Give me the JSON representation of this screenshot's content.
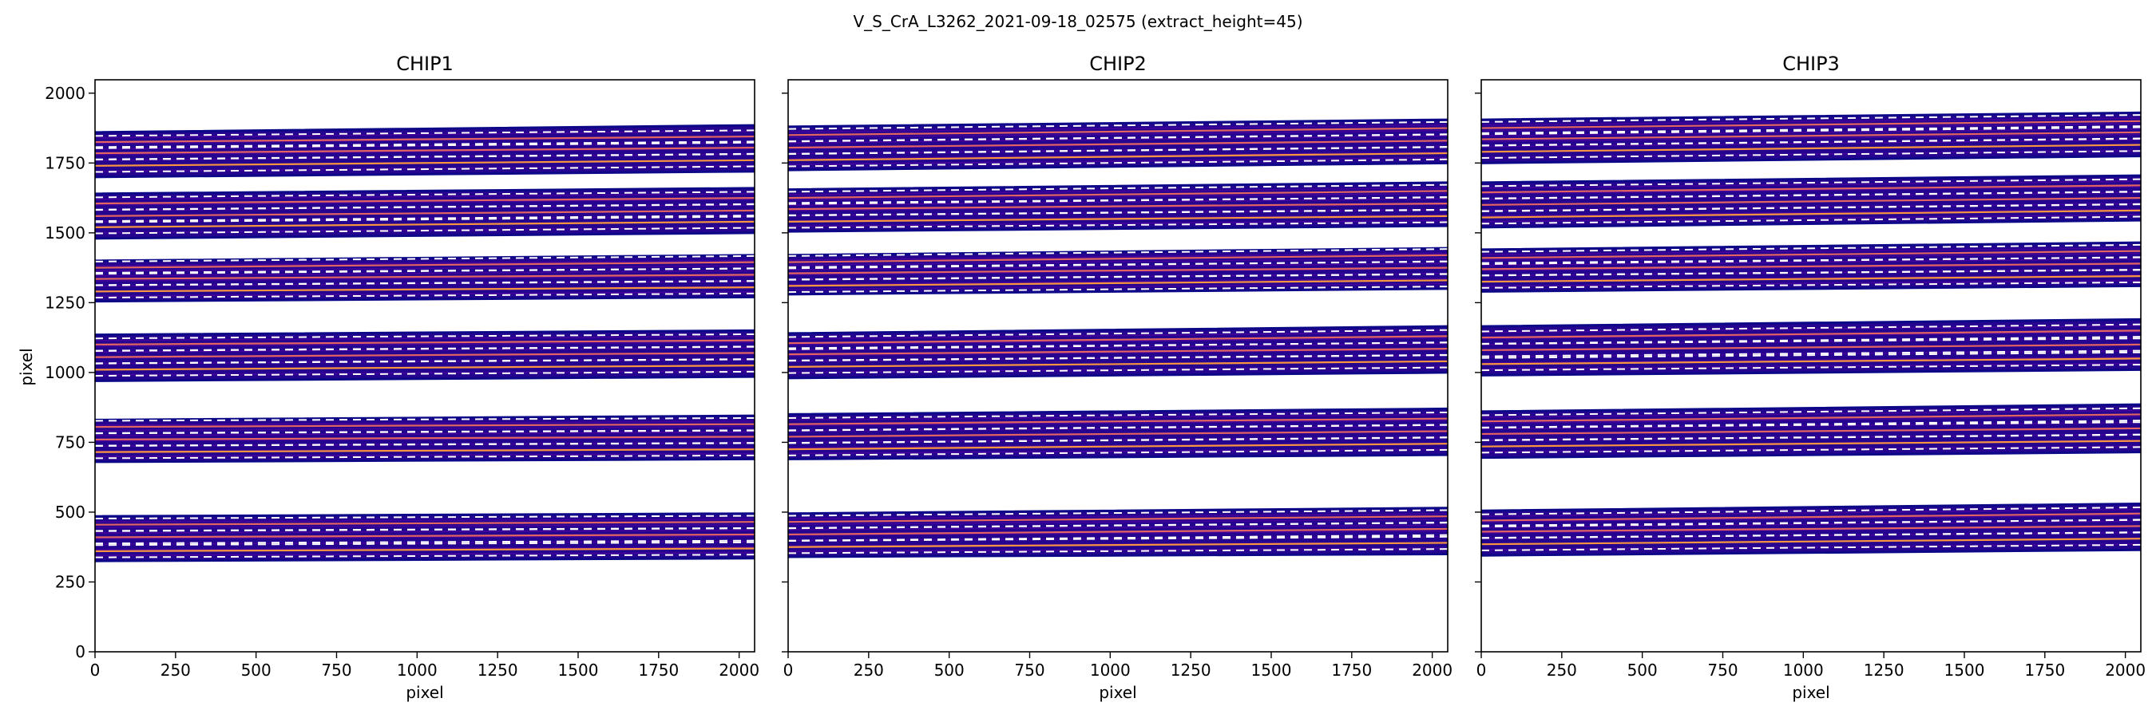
{
  "chart_data": {
    "type": "heatmap",
    "suptitle": "V_S_CrA_L3262_2021-09-18_02575  (extract_height=45)",
    "xlabel": "pixel",
    "ylabel": "pixel",
    "xlim": [
      0,
      2048
    ],
    "ylim": [
      0,
      2048
    ],
    "xticks": [
      0,
      250,
      500,
      750,
      1000,
      1250,
      1500,
      1750,
      2000
    ],
    "yticks": [
      0,
      250,
      500,
      750,
      1000,
      1250,
      1500,
      1750,
      2000
    ],
    "colors": {
      "band_fill": "#25048f",
      "band_edge": "#0d0887",
      "band_stripe": "#5c01a6",
      "trace_line": "#f89540",
      "trace_pink": "#e16462",
      "dashed_line": "#ffffff"
    },
    "panels": [
      {
        "title": "CHIP1",
        "orders": [
          {
            "bottom": [
              325,
              335
            ],
            "top": [
              485,
              495
            ],
            "traces": [
              [
                360,
                370
              ],
              [
                410,
                420
              ],
              [
                455,
                465
              ]
            ]
          },
          {
            "bottom": [
              680,
              690
            ],
            "top": [
              830,
              845
            ],
            "traces": [
              [
                715,
                725
              ],
              [
                760,
                770
              ],
              [
                805,
                815
              ]
            ]
          },
          {
            "bottom": [
              970,
              985
            ],
            "top": [
              1135,
              1150
            ],
            "traces": [
              [
                1010,
                1025
              ],
              [
                1055,
                1070
              ],
              [
                1100,
                1115
              ]
            ]
          },
          {
            "bottom": [
              1255,
              1270
            ],
            "top": [
              1400,
              1420
            ],
            "traces": [
              [
                1290,
                1305
              ],
              [
                1335,
                1350
              ],
              [
                1375,
                1395
              ]
            ]
          },
          {
            "bottom": [
              1480,
              1500
            ],
            "top": [
              1640,
              1660
            ],
            "traces": [
              [
                1520,
                1540
              ],
              [
                1560,
                1580
              ],
              [
                1605,
                1625
              ]
            ]
          },
          {
            "bottom": [
              1700,
              1720
            ],
            "top": [
              1860,
              1885
            ],
            "traces": [
              [
                1740,
                1760
              ],
              [
                1785,
                1805
              ],
              [
                1825,
                1845
              ]
            ]
          }
        ]
      },
      {
        "title": "CHIP2",
        "orders": [
          {
            "bottom": [
              340,
              350
            ],
            "top": [
              495,
              515
            ],
            "traces": [
              [
                375,
                390
              ],
              [
                420,
                440
              ],
              [
                465,
                485
              ]
            ]
          },
          {
            "bottom": [
              690,
              705
            ],
            "top": [
              850,
              870
            ],
            "traces": [
              [
                725,
                745
              ],
              [
                770,
                790
              ],
              [
                815,
                835
              ]
            ]
          },
          {
            "bottom": [
              980,
              1000
            ],
            "top": [
              1140,
              1165
            ],
            "traces": [
              [
                1020,
                1040
              ],
              [
                1065,
                1085
              ],
              [
                1105,
                1130
              ]
            ]
          },
          {
            "bottom": [
              1280,
              1300
            ],
            "top": [
              1420,
              1445
            ],
            "traces": [
              [
                1310,
                1330
              ],
              [
                1355,
                1375
              ],
              [
                1395,
                1420
              ]
            ]
          },
          {
            "bottom": [
              1505,
              1525
            ],
            "top": [
              1655,
              1680
            ],
            "traces": [
              [
                1540,
                1560
              ],
              [
                1585,
                1605
              ],
              [
                1625,
                1650
              ]
            ]
          },
          {
            "bottom": [
              1725,
              1750
            ],
            "top": [
              1880,
              1905
            ],
            "traces": [
              [
                1760,
                1785
              ],
              [
                1805,
                1830
              ],
              [
                1850,
                1875
              ]
            ]
          }
        ]
      },
      {
        "title": "CHIP3",
        "orders": [
          {
            "bottom": [
              345,
              365
            ],
            "top": [
              505,
              530
            ],
            "traces": [
              [
                385,
                405
              ],
              [
                430,
                450
              ],
              [
                470,
                495
              ]
            ]
          },
          {
            "bottom": [
              695,
              715
            ],
            "top": [
              860,
              885
            ],
            "traces": [
              [
                735,
                755
              ],
              [
                780,
                800
              ],
              [
                825,
                850
              ]
            ]
          },
          {
            "bottom": [
              990,
              1010
            ],
            "top": [
              1165,
              1190
            ],
            "traces": [
              [
                1030,
                1050
              ],
              [
                1080,
                1100
              ],
              [
                1125,
                1150
              ]
            ]
          },
          {
            "bottom": [
              1290,
              1310
            ],
            "top": [
              1440,
              1465
            ],
            "traces": [
              [
                1325,
                1345
              ],
              [
                1370,
                1390
              ],
              [
                1410,
                1435
              ]
            ]
          },
          {
            "bottom": [
              1520,
              1545
            ],
            "top": [
              1680,
              1705
            ],
            "traces": [
              [
                1555,
                1580
              ],
              [
                1600,
                1625
              ],
              [
                1645,
                1670
              ]
            ]
          },
          {
            "bottom": [
              1750,
              1775
            ],
            "top": [
              1905,
              1930
            ],
            "traces": [
              [
                1790,
                1815
              ],
              [
                1835,
                1860
              ],
              [
                1875,
                1900
              ]
            ]
          }
        ]
      }
    ]
  }
}
